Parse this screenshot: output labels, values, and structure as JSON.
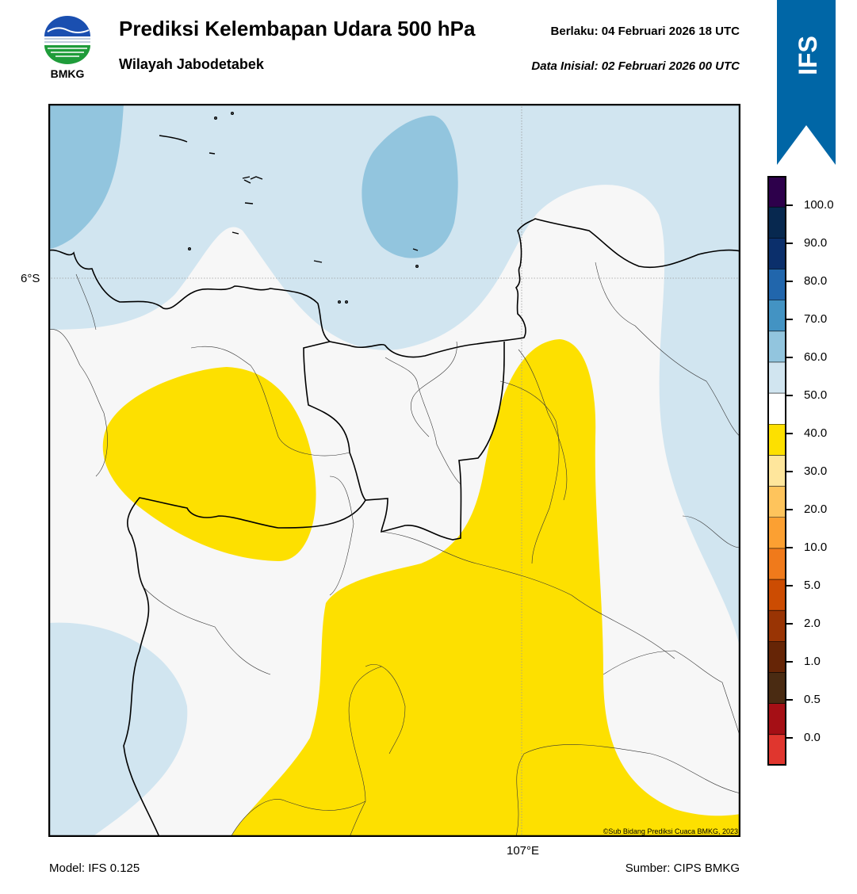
{
  "header": {
    "title": "Prediksi Kelembapan Udara 500 hPa",
    "subtitle": "Wilayah Jabodetabek",
    "valid_time": "Berlaku:  04 Februari 2026 18 UTC",
    "initial_time": "Data Inisial:  02 Februari 2026 00 UTC",
    "logo_text": "BMKG",
    "model_badge": "IFS"
  },
  "map": {
    "lat_label": "6°S",
    "lon_label": "107°E",
    "copyright": "©Sub Bidang Prediksi Cuaca BMKG, 2023",
    "colors": {
      "dry_30_40": "#fde000",
      "neutral_40_50": "#f7f7f7",
      "moist_50_60": "#d1e5f0",
      "moist_60_70": "#92c5de",
      "border": "#000000"
    }
  },
  "footer": {
    "model": "Model: IFS 0.125",
    "source": "Sumber: CIPS BMKG"
  },
  "colorbar": {
    "labels": [
      "100.0",
      "90.0",
      "80.0",
      "70.0",
      "60.0",
      "50.0",
      "40.0",
      "30.0",
      "20.0",
      "10.0",
      "5.0",
      "2.0",
      "1.0",
      "0.5",
      "0.0"
    ],
    "colors": [
      "#2d004b",
      "#07284f",
      "#0b2f6b",
      "#2166ac",
      "#4393c3",
      "#92c5de",
      "#d1e5f0",
      "#ffffff",
      "#fde000",
      "#fee69c",
      "#fec45c",
      "#fca032",
      "#f07a1b",
      "#cc4c02",
      "#993404",
      "#662506",
      "#4a2b12",
      "#a50f15",
      "#e0362e"
    ]
  }
}
